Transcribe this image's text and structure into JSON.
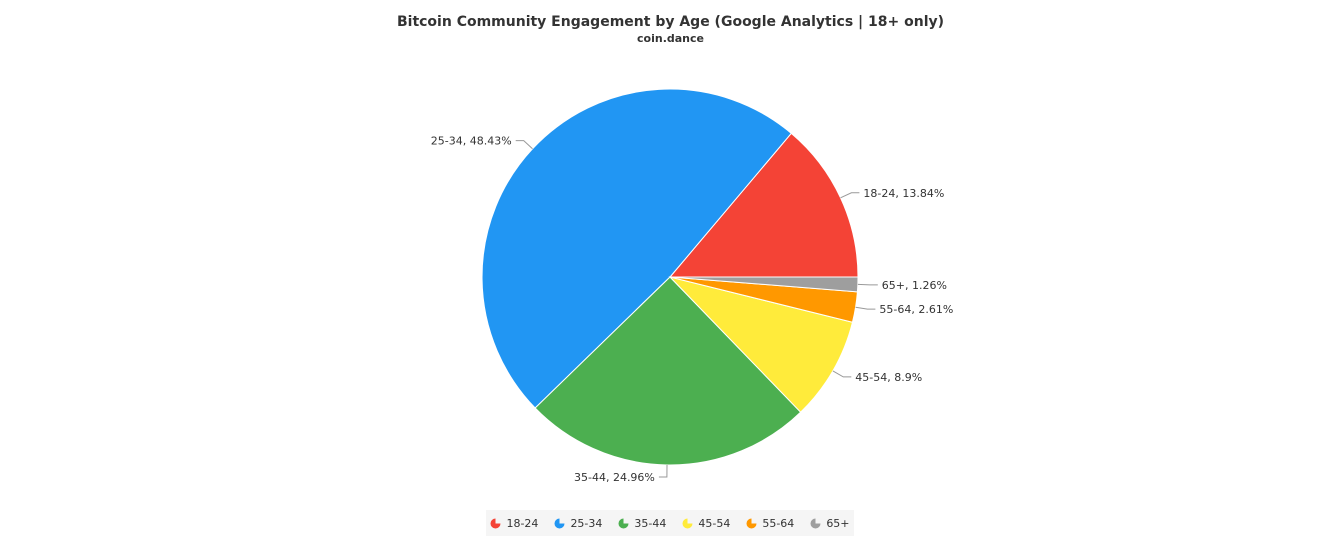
{
  "chart_data": {
    "type": "pie",
    "title": "Bitcoin Community Engagement by Age (Google Analytics | 18+ only)",
    "subtitle": "coin.dance",
    "slices": [
      {
        "label": "18-24",
        "value": 13.84,
        "display": "18-24, 13.84%",
        "color": "#f44336"
      },
      {
        "label": "25-34",
        "value": 48.43,
        "display": "25-34, 48.43%",
        "color": "#2196f3"
      },
      {
        "label": "35-44",
        "value": 24.96,
        "display": "35-44, 24.96%",
        "color": "#4caf50"
      },
      {
        "label": "45-54",
        "value": 8.9,
        "display": "45-54, 8.9%",
        "color": "#ffeb3b"
      },
      {
        "label": "55-64",
        "value": 2.61,
        "display": "55-64, 2.61%",
        "color": "#ff9800"
      },
      {
        "label": "65+",
        "value": 1.26,
        "display": "65+, 1.26%",
        "color": "#9e9e9e"
      }
    ],
    "legend": {
      "position": "bottom",
      "items": [
        "18-24",
        "25-34",
        "35-44",
        "45-54",
        "55-64",
        "65+"
      ]
    }
  }
}
